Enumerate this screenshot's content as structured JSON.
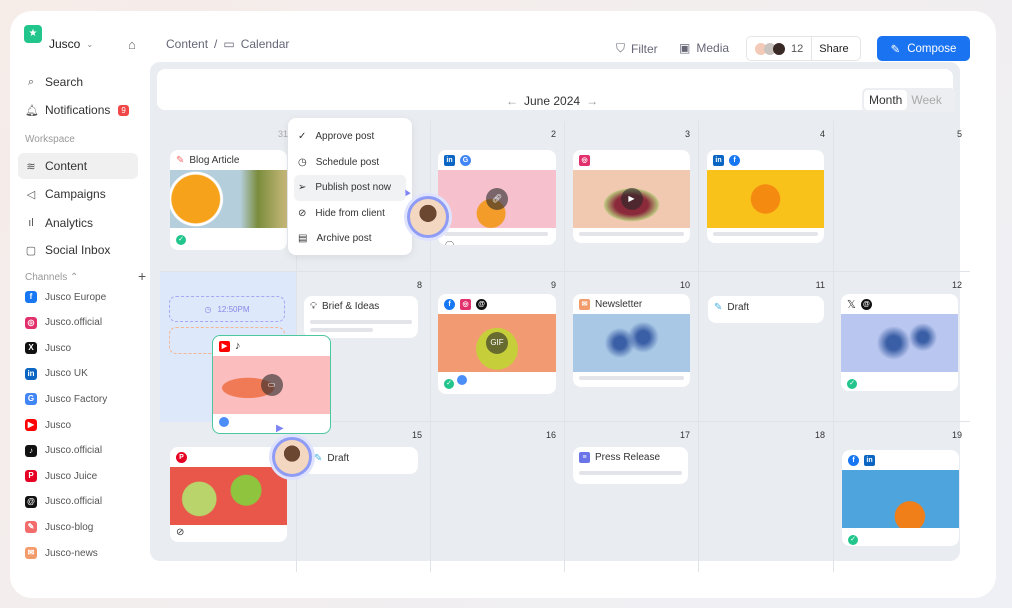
{
  "app": {
    "workspace": "Jusco",
    "breadcrumb": [
      "Content",
      "Calendar"
    ]
  },
  "toolbar": {
    "filter": "Filter",
    "media": "Media",
    "collaborators": "12",
    "share": "Share",
    "compose": "Compose"
  },
  "sidebar": {
    "items": [
      {
        "label": "Search",
        "icon": "search-icon"
      },
      {
        "label": "Notifications",
        "icon": "bell-icon",
        "badge": "9"
      },
      {
        "label": "Content",
        "icon": "layers-icon",
        "active": true
      },
      {
        "label": "Campaigns",
        "icon": "megaphone-icon"
      },
      {
        "label": "Analytics",
        "icon": "chart-icon"
      },
      {
        "label": "Social Inbox",
        "icon": "inbox-icon"
      }
    ],
    "workspace_label": "Workspace",
    "channels_label": "Channels",
    "channels": [
      {
        "label": "Jusco Europe",
        "icon": "facebook",
        "color": "#1877f2"
      },
      {
        "label": "Jusco.official",
        "icon": "instagram",
        "color": "#e1306c"
      },
      {
        "label": "Jusco",
        "icon": "x",
        "color": "#111111"
      },
      {
        "label": "Jusco UK",
        "icon": "linkedin",
        "color": "#0a66c2"
      },
      {
        "label": "Jusco Factory",
        "icon": "google",
        "color": "#4285f4"
      },
      {
        "label": "Jusco",
        "icon": "youtube",
        "color": "#ff0000"
      },
      {
        "label": "Jusco.official",
        "icon": "tiktok",
        "color": "#111111"
      },
      {
        "label": "Jusco Juice",
        "icon": "pinterest",
        "color": "#e60023"
      },
      {
        "label": "Jusco.official",
        "icon": "threads",
        "color": "#111111"
      },
      {
        "label": "Jusco-blog",
        "icon": "blog",
        "color": "#f36c6c"
      },
      {
        "label": "Jusco-news",
        "icon": "newsletter",
        "color": "#f39c6b"
      }
    ]
  },
  "calendar": {
    "month": "June 2024",
    "views": [
      "Month",
      "Week"
    ],
    "active_view": "Month",
    "days": [
      "31",
      "",
      "2",
      "3",
      "4",
      "5",
      "",
      "8",
      "9",
      "10",
      "11",
      "12",
      "",
      "15",
      "16",
      "17",
      "18",
      "19"
    ],
    "cards": {
      "blog": "Blog Article",
      "brief": "Brief & Ideas",
      "newsletter": "Newsletter",
      "draft1": "Draft",
      "draft2": "Draft",
      "press": "Press Release",
      "time": "12:50PM"
    }
  },
  "context_menu": {
    "items": [
      "Approve post",
      "Schedule post",
      "Publish post now",
      "Hide from client",
      "Archive post"
    ],
    "highlighted": "Publish post now"
  }
}
